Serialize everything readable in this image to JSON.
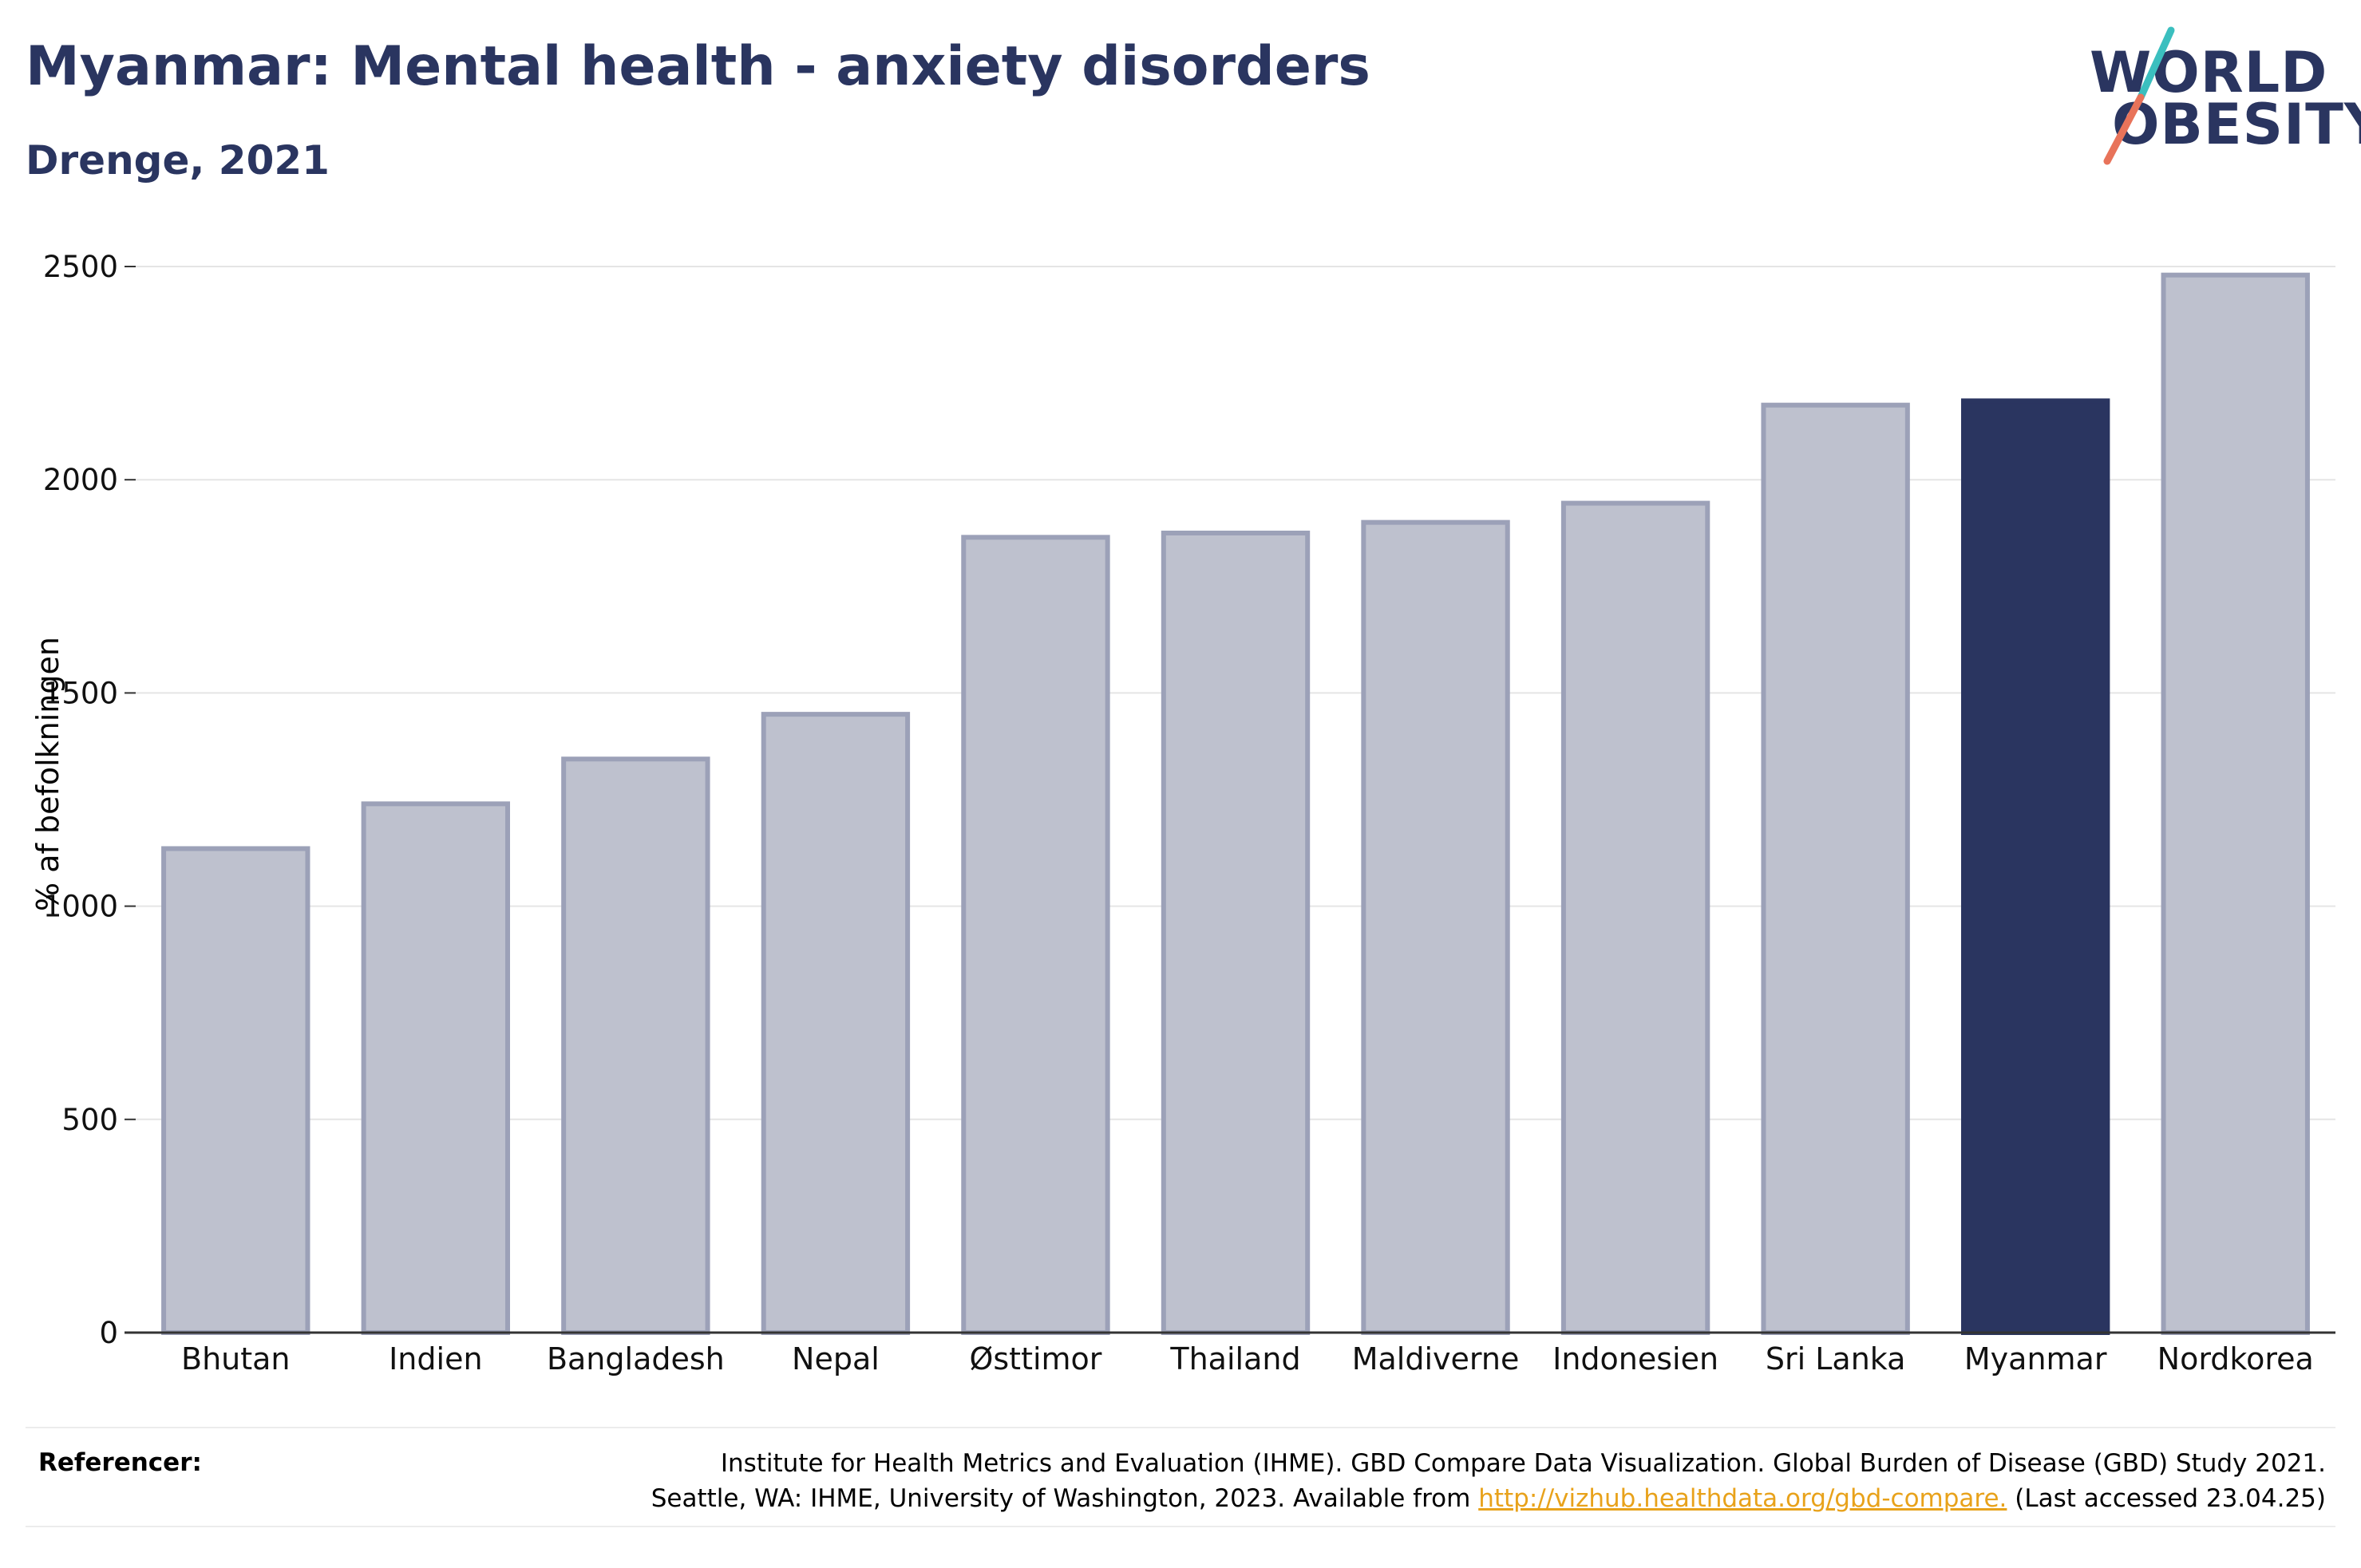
{
  "header": {
    "title": "Myanmar: Mental health - anxiety disorders",
    "subtitle": "Drenge, 2021"
  },
  "logo": {
    "line1": "WORLD",
    "line2": "OBESITY",
    "colors": {
      "text": "#2a3560",
      "slash_top": "#3bbfbf",
      "slash_bottom": "#e8735a"
    }
  },
  "chart_data": {
    "type": "bar",
    "categories": [
      "Bhutan",
      "Indien",
      "Bangladesh",
      "Nepal",
      "Østtimor",
      "Thailand",
      "Maldiverne",
      "Indonesien",
      "Sri Lanka",
      "Myanmar",
      "Nordkorea"
    ],
    "values": [
      1135,
      1240,
      1345,
      1450,
      1865,
      1875,
      1900,
      1945,
      2175,
      2185,
      2480
    ],
    "highlight": "Myanmar",
    "ylabel": "% af befolkningen",
    "xlabel": "",
    "ylim": [
      0,
      2500
    ],
    "yticks": [
      0,
      500,
      1000,
      1500,
      2000,
      2500
    ],
    "grid": true,
    "colors": {
      "bar": "#bec1ce",
      "bar_border": "#9ca1b8",
      "highlight": "#2a3560",
      "grid": "#e5e5e5",
      "axis": "#333333"
    }
  },
  "references": {
    "label": "Referencer:",
    "line1": "Institute for Health Metrics and Evaluation (IHME). GBD Compare Data Visualization. Global Burden of Disease (GBD) Study 2021.",
    "line2_prefix": "Seattle, WA: IHME, University of Washington, 2023. Available from ",
    "link": "http://vizhub.healthdata.org/gbd-compare.",
    "line2_suffix": " (Last accessed 23.04.25)"
  }
}
